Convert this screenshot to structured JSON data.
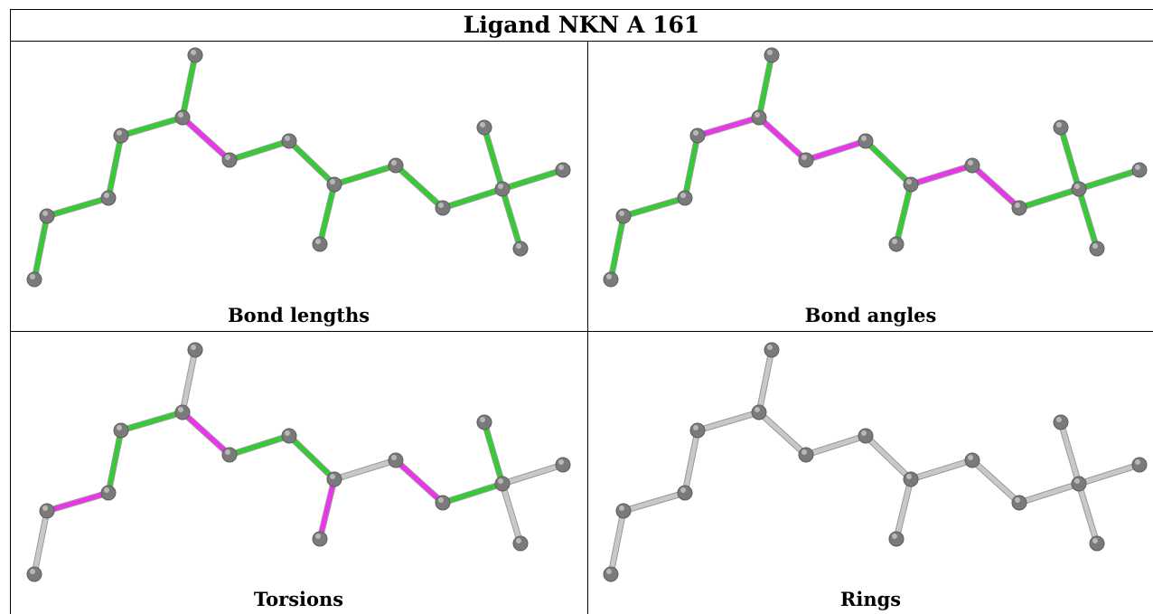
{
  "title": "Ligand NKN A 161",
  "colors": {
    "ok": "#33cc33",
    "outlier": "#ee33ee",
    "unassessed": "#c8c8c8",
    "atom": "#7a7a7a"
  },
  "panels": [
    {
      "caption": "Bond lengths",
      "bond_status": [
        "ok",
        "ok",
        "ok",
        "ok",
        "ok",
        "outlier",
        "ok",
        "ok",
        "ok",
        "ok",
        "ok",
        "ok",
        "ok",
        "ok",
        "ok",
        "ok"
      ]
    },
    {
      "caption": "Bond angles",
      "bond_status": [
        "ok",
        "ok",
        "ok",
        "outlier",
        "ok",
        "outlier",
        "outlier",
        "ok",
        "ok",
        "outlier",
        "outlier",
        "ok",
        "ok",
        "ok",
        "ok",
        "ok"
      ]
    },
    {
      "caption": "Torsions",
      "bond_status": [
        "unassessed",
        "outlier",
        "ok",
        "ok",
        "unassessed",
        "outlier",
        "ok",
        "ok",
        "outlier",
        "unassessed",
        "outlier",
        "ok",
        "ok",
        "unassessed",
        "unassessed",
        "unassessed"
      ]
    },
    {
      "caption": "Rings",
      "bond_status": [
        "unassessed",
        "unassessed",
        "unassessed",
        "unassessed",
        "unassessed",
        "unassessed",
        "unassessed",
        "unassessed",
        "unassessed",
        "unassessed",
        "unassessed",
        "unassessed",
        "unassessed",
        "unassessed",
        "unassessed",
        "unassessed"
      ]
    }
  ]
}
